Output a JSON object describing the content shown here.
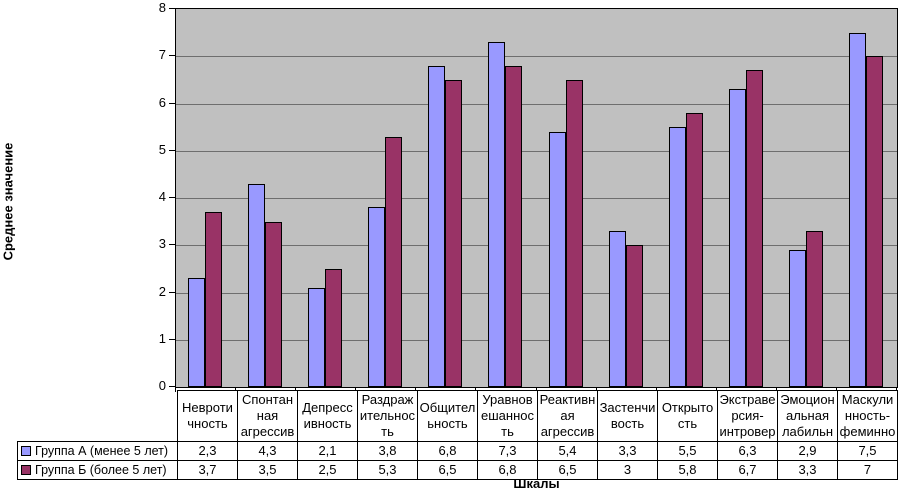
{
  "chart_data": {
    "type": "bar",
    "title": "",
    "xlabel": "Шкалы",
    "ylabel": "Среднее значение",
    "ylim": [
      0,
      8
    ],
    "ytick_interval": 1,
    "yticks": [
      0,
      1,
      2,
      3,
      4,
      5,
      6,
      7,
      8
    ],
    "grid": "horizontal-major",
    "plot_background": "#C0C0C0",
    "gridline_color": "#6e6e6e",
    "legend_position": "data-table-left",
    "decimal_separator": ",",
    "categories_display": [
      "Невроти\nчность",
      "Спонтан\nная\nагрессив",
      "Депресс\nивность",
      "Раздраж\nительнос\nть",
      "Общител\nьность",
      "Уравнов\nешаннос\nть",
      "Реактивн\nая\nагрессив",
      "Застенчи\nвость",
      "Открыто\nсть",
      "Экстраве\nрсия-\nинтровер",
      "Эмоцион\nальная\nлабильн",
      "Маскули\nнность-\nфеминно"
    ],
    "series": [
      {
        "name": "Группа А (менее 5 лет)",
        "color": "#9999FF",
        "values": [
          2.3,
          4.3,
          2.1,
          3.8,
          6.8,
          7.3,
          5.4,
          3.3,
          5.5,
          6.3,
          2.9,
          7.5
        ]
      },
      {
        "name": "Группа Б (более 5 лет)",
        "color": "#993366",
        "values": [
          3.7,
          3.5,
          2.5,
          5.3,
          6.5,
          6.8,
          6.5,
          3,
          5.8,
          6.7,
          3.3,
          7
        ]
      }
    ]
  }
}
